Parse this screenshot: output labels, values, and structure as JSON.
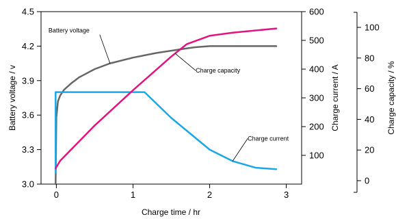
{
  "chart_data": {
    "type": "line",
    "xlabel": "Charge time / hr",
    "ylabel": "Battery voltage / v",
    "y2label": "Charge current / A",
    "y3label": "Charge capacity / %",
    "xlim": [
      -0.2,
      3.2
    ],
    "ylim": [
      3.0,
      4.5
    ],
    "y2lim": [
      0,
      600
    ],
    "y3lim": [
      0,
      100
    ],
    "x_ticks": [
      0,
      1,
      2,
      3
    ],
    "y_ticks": [
      "3.0",
      "3.3",
      "3.6",
      "3.9",
      "4.2",
      "4.5"
    ],
    "y2_ticks": [
      100,
      200,
      300,
      400,
      500,
      600
    ],
    "y3_ticks": [
      0,
      20,
      40,
      60,
      80,
      100
    ],
    "grid": false,
    "series": [
      {
        "name": "Battery voltage",
        "axis": "voltage",
        "color": "#666666",
        "x": [
          -0.01,
          0.0,
          0.02,
          0.05,
          0.1,
          0.2,
          0.3,
          0.5,
          0.7,
          1.0,
          1.3,
          1.6,
          1.8,
          2.0,
          2.5,
          2.87
        ],
        "y": [
          3.0,
          3.58,
          3.72,
          3.77,
          3.82,
          3.88,
          3.93,
          4.0,
          4.05,
          4.1,
          4.14,
          4.17,
          4.19,
          4.2,
          4.2,
          4.2
        ]
      },
      {
        "name": "Charge current",
        "axis": "current",
        "color": "#1aa7e8",
        "x": [
          -0.01,
          -0.01,
          1.15,
          1.5,
          2.0,
          2.3,
          2.6,
          2.87
        ],
        "y": [
          40,
          320,
          320,
          230,
          120,
          80,
          57,
          52
        ]
      },
      {
        "name": "Charge capacity",
        "axis": "capacity",
        "color": "#e0157f",
        "x": [
          -0.01,
          0.05,
          0.5,
          1.0,
          1.5,
          1.7,
          2.0,
          2.3,
          2.6,
          2.87
        ],
        "y": [
          8,
          13,
          36,
          59,
          81,
          89,
          94.5,
          96.5,
          98,
          99.3
        ]
      }
    ],
    "annotations": [
      {
        "text": "Battery voltage",
        "series": "Battery voltage",
        "x": 0.7,
        "y": 4.05
      },
      {
        "text": "Charge capacity",
        "series": "Charge capacity",
        "x": 1.55,
        "y": 83
      },
      {
        "text": "Charge current",
        "series": "Charge current",
        "x": 2.3,
        "y": 80
      }
    ]
  }
}
